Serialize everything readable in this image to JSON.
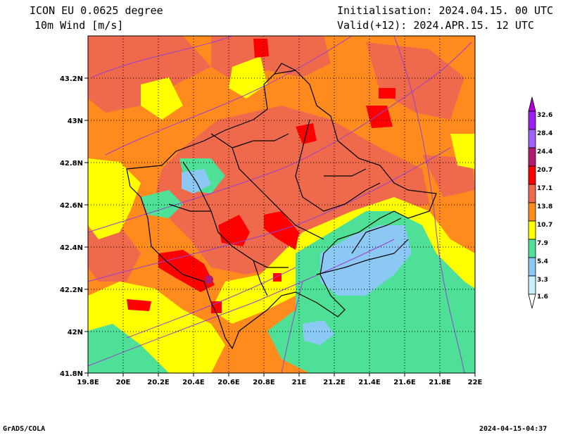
{
  "header": {
    "model": "ICON EU 0.0625 degree",
    "variable": "10m Wind [m/s]",
    "init": "Initialisation: 2024.04.15. 00 UTC",
    "valid": "Valid(+12): 2024.APR.15. 12 UTC"
  },
  "axes": {
    "x_ticks": [
      "19.8E",
      "20E",
      "20.2E",
      "20.4E",
      "20.6E",
      "20.8E",
      "21E",
      "21.2E",
      "21.4E",
      "21.6E",
      "21.8E",
      "22E"
    ],
    "y_ticks": [
      "43.2N",
      "43N",
      "42.8N",
      "42.6N",
      "42.4N",
      "42.2N",
      "42N",
      "41.8N"
    ],
    "lon_range": [
      19.8,
      22.0
    ],
    "lat_range": [
      41.8,
      43.4
    ]
  },
  "colorbar": {
    "labels": [
      "32.6",
      "28.4",
      "24.4",
      "20.7",
      "17.1",
      "13.8",
      "10.7",
      "7.9",
      "5.4",
      "3.3",
      "1.6"
    ],
    "colors": [
      "#9b1ef0",
      "#a060f8",
      "#b01a70",
      "#ff0000",
      "#ef6a4c",
      "#ff8a1e",
      "#ffff00",
      "#4de096",
      "#8cc8f4",
      "#c8f0ff"
    ]
  },
  "footer": {
    "left": "GrADS/COLA",
    "right": "2024-04-15-04:37"
  }
}
